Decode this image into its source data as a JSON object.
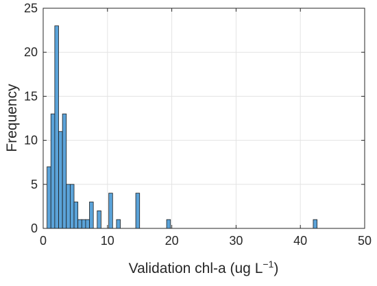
{
  "chart_data": {
    "type": "bar",
    "title": "",
    "xlabel": "Validation chl-a (ug L",
    "xlabel_superscript": "−1",
    "xlabel_suffix": ")",
    "ylabel": "Frequency",
    "xlim": [
      0,
      50
    ],
    "ylim": [
      0,
      25
    ],
    "xticks": [
      "0",
      "10",
      "20",
      "30",
      "40",
      "50"
    ],
    "yticks": [
      "0",
      "5",
      "10",
      "15",
      "20",
      "25"
    ],
    "grid": true,
    "bin_width": 0.6,
    "bar_color": "#5ba3d9",
    "bar_edge_color": "#1a1a1a",
    "bins": [
      {
        "x": 0.3,
        "count": 0
      },
      {
        "x": 0.9,
        "count": 7
      },
      {
        "x": 1.5,
        "count": 13
      },
      {
        "x": 2.1,
        "count": 23
      },
      {
        "x": 2.7,
        "count": 11
      },
      {
        "x": 3.3,
        "count": 13
      },
      {
        "x": 3.9,
        "count": 5
      },
      {
        "x": 4.5,
        "count": 5
      },
      {
        "x": 5.1,
        "count": 3
      },
      {
        "x": 5.7,
        "count": 1
      },
      {
        "x": 6.3,
        "count": 1
      },
      {
        "x": 6.9,
        "count": 1
      },
      {
        "x": 7.5,
        "count": 3
      },
      {
        "x": 8.7,
        "count": 2
      },
      {
        "x": 10.5,
        "count": 4
      },
      {
        "x": 11.7,
        "count": 1
      },
      {
        "x": 14.7,
        "count": 4
      },
      {
        "x": 19.5,
        "count": 1
      },
      {
        "x": 42.3,
        "count": 1
      }
    ]
  }
}
